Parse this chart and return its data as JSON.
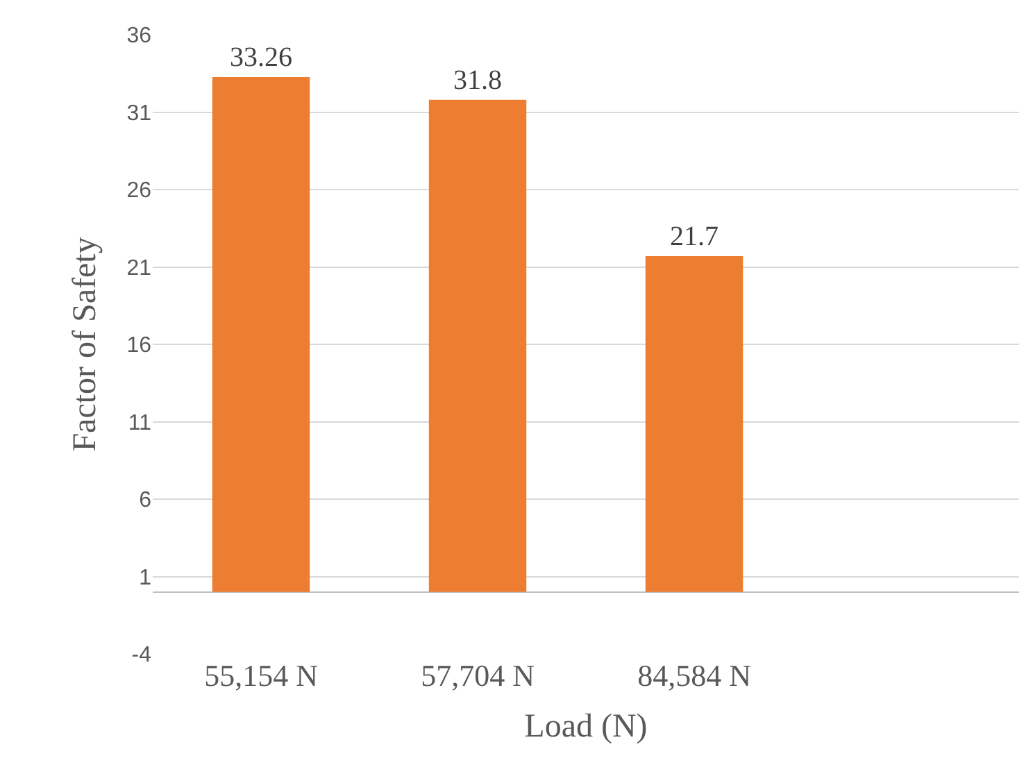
{
  "chart_data": {
    "type": "bar",
    "xlabel": "Load (N)",
    "ylabel": "Factor of Safety",
    "categories": [
      "55,154 N",
      "57,704 N",
      "84,584 N",
      null
    ],
    "series": [
      {
        "color": "#ed7d31",
        "values": [
          33.26,
          31.8,
          21.7,
          null
        ]
      }
    ],
    "ylim": [
      -4,
      36
    ],
    "yticks": [
      -4,
      1,
      6,
      11,
      16,
      21,
      26,
      31,
      36
    ],
    "grid": "y",
    "data_labels": true,
    "legend": false
  }
}
